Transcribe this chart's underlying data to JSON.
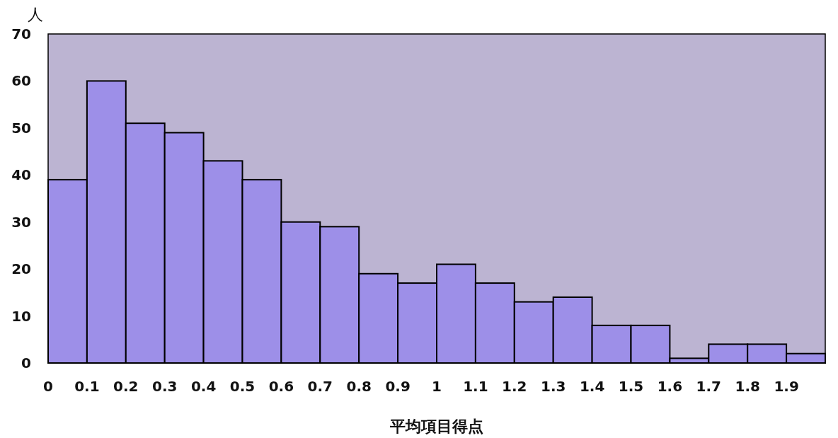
{
  "chart_data": {
    "type": "histogram",
    "xlabel": "平均項目得点",
    "ylabel": "人",
    "color": "#9d8fe8",
    "bins": [
      0,
      0.1,
      0.2,
      0.3,
      0.4,
      0.5,
      0.6,
      0.7,
      0.8,
      0.9,
      1,
      1.1,
      1.2,
      1.3,
      1.4,
      1.5,
      1.6,
      1.7,
      1.8,
      1.9,
      2
    ],
    "values": [
      39,
      60,
      51,
      49,
      43,
      39,
      30,
      29,
      19,
      17,
      21,
      17,
      13,
      14,
      8,
      8,
      1,
      4,
      4,
      2
    ],
    "xlim": [
      0,
      2
    ],
    "ylim": [
      0,
      70
    ],
    "xticks": [
      0,
      0.1,
      0.2,
      0.3,
      0.4,
      0.5,
      0.6,
      0.7,
      0.8,
      0.9,
      1,
      1.1,
      1.2,
      1.3,
      1.4,
      1.5,
      1.6,
      1.7,
      1.8,
      1.9
    ],
    "yticks": [
      0,
      10,
      20,
      30,
      40,
      50,
      60,
      70
    ],
    "grid": false
  }
}
